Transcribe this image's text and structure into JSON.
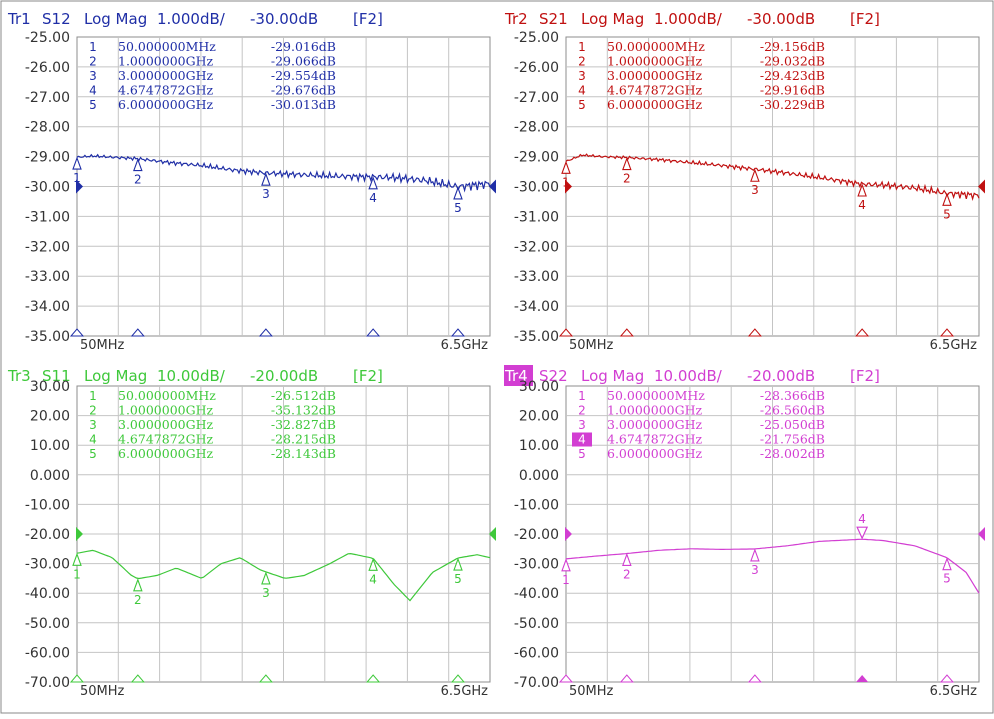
{
  "traces": [
    {
      "id": "tr1",
      "header": {
        "tr": "Tr1",
        "param": "S12",
        "format": "Log Mag",
        "scale": "1.000dB/",
        "ref": "-30.00dB",
        "channel": "[F2]"
      },
      "color": "#1f2ea6",
      "tr_highlight": false,
      "y_labels": [
        "-25.00",
        "-26.00",
        "-27.00",
        "-28.00",
        "-29.00",
        "-30.00",
        "-31.00",
        "-32.00",
        "-33.00",
        "-34.00",
        "-35.00"
      ],
      "x_start": "50MHz",
      "x_stop": "6.5GHz",
      "markers": [
        {
          "num": "1",
          "freq": "50.000000MHz",
          "value": "-29.016dB",
          "active": false
        },
        {
          "num": "2",
          "freq": "1.0000000GHz",
          "value": "-29.066dB",
          "active": false
        },
        {
          "num": "3",
          "freq": "3.0000000GHz",
          "value": "-29.554dB",
          "active": false
        },
        {
          "num": "4",
          "freq": "4.6747872GHz",
          "value": "-29.676dB",
          "active": false
        },
        {
          "num": "5",
          "freq": "6.0000000GHz",
          "value": "-30.013dB",
          "active": false
        }
      ],
      "chart_data": {
        "type": "line",
        "xlim": [
          0.05,
          6.5
        ],
        "ylim": [
          -35,
          -25
        ],
        "ref": -30,
        "x": [
          0.05,
          0.3,
          0.6,
          1.0,
          1.5,
          2.0,
          2.5,
          3.0,
          3.5,
          4.0,
          4.675,
          5.0,
          5.5,
          6.0,
          6.5
        ],
        "y": [
          -29.02,
          -28.98,
          -29.02,
          -29.07,
          -29.2,
          -29.3,
          -29.45,
          -29.55,
          -29.6,
          -29.65,
          -29.68,
          -29.7,
          -29.8,
          -30.01,
          -29.9
        ],
        "ripple": 0.15
      }
    },
    {
      "id": "tr2",
      "header": {
        "tr": "Tr2",
        "param": "S21",
        "format": "Log Mag",
        "scale": "1.000dB/",
        "ref": "-30.00dB",
        "channel": "[F2]"
      },
      "color": "#c01010",
      "tr_highlight": false,
      "y_labels": [
        "-25.00",
        "-26.00",
        "-27.00",
        "-28.00",
        "-29.00",
        "-30.00",
        "-31.00",
        "-32.00",
        "-33.00",
        "-34.00",
        "-35.00"
      ],
      "x_start": "50MHz",
      "x_stop": "6.5GHz",
      "markers": [
        {
          "num": "1",
          "freq": "50.000000MHz",
          "value": "-29.156dB",
          "active": false
        },
        {
          "num": "2",
          "freq": "1.0000000GHz",
          "value": "-29.032dB",
          "active": false
        },
        {
          "num": "3",
          "freq": "3.0000000GHz",
          "value": "-29.423dB",
          "active": false
        },
        {
          "num": "4",
          "freq": "4.6747872GHz",
          "value": "-29.916dB",
          "active": false
        },
        {
          "num": "5",
          "freq": "6.0000000GHz",
          "value": "-30.229dB",
          "active": false
        }
      ],
      "chart_data": {
        "type": "line",
        "xlim": [
          0.05,
          6.5
        ],
        "ylim": [
          -35,
          -25
        ],
        "ref": -30,
        "x": [
          0.05,
          0.3,
          0.6,
          1.0,
          1.5,
          2.0,
          2.5,
          3.0,
          3.5,
          4.0,
          4.675,
          5.0,
          5.5,
          6.0,
          6.5
        ],
        "y": [
          -29.16,
          -28.95,
          -29.0,
          -29.03,
          -29.1,
          -29.2,
          -29.3,
          -29.42,
          -29.55,
          -29.7,
          -29.92,
          -29.95,
          -30.05,
          -30.23,
          -30.3
        ],
        "ripple": 0.12
      }
    },
    {
      "id": "tr3",
      "header": {
        "tr": "Tr3",
        "param": "S11",
        "format": "Log Mag",
        "scale": "10.00dB/",
        "ref": "-20.00dB",
        "channel": "[F2]"
      },
      "color": "#3ec83a",
      "tr_highlight": false,
      "y_labels": [
        "30.00",
        "20.00",
        "10.00",
        "0.000",
        "-10.00",
        "-20.00",
        "-30.00",
        "-40.00",
        "-50.00",
        "-60.00",
        "-70.00"
      ],
      "x_start": "50MHz",
      "x_stop": "6.5GHz",
      "markers": [
        {
          "num": "1",
          "freq": "50.000000MHz",
          "value": "-26.512dB",
          "active": false
        },
        {
          "num": "2",
          "freq": "1.0000000GHz",
          "value": "-35.132dB",
          "active": false
        },
        {
          "num": "3",
          "freq": "3.0000000GHz",
          "value": "-32.827dB",
          "active": false
        },
        {
          "num": "4",
          "freq": "4.6747872GHz",
          "value": "-28.215dB",
          "active": false
        },
        {
          "num": "5",
          "freq": "6.0000000GHz",
          "value": "-28.143dB",
          "active": false
        }
      ],
      "chart_data": {
        "type": "line",
        "xlim": [
          0.05,
          6.5
        ],
        "ylim": [
          -70,
          30
        ],
        "ref": -20,
        "x": [
          0.05,
          0.3,
          0.6,
          0.9,
          1.0,
          1.3,
          1.6,
          2.0,
          2.3,
          2.6,
          2.9,
          3.0,
          3.3,
          3.6,
          4.0,
          4.3,
          4.675,
          5.0,
          5.25,
          5.6,
          6.0,
          6.3,
          6.5
        ],
        "y": [
          -26.5,
          -25.5,
          -28,
          -34,
          -35.1,
          -34,
          -31.5,
          -35,
          -30,
          -28,
          -32,
          -32.8,
          -35,
          -34,
          -30,
          -26.5,
          -28.2,
          -37,
          -42.5,
          -33,
          -28.1,
          -27,
          -28
        ],
        "ripple": 0
      }
    },
    {
      "id": "tr4",
      "header": {
        "tr": "Tr4",
        "param": "S22",
        "format": "Log Mag",
        "scale": "10.00dB/",
        "ref": "-20.00dB",
        "channel": "[F2]"
      },
      "color": "#d23ed2",
      "tr_highlight": true,
      "y_labels": [
        "30.00",
        "20.00",
        "10.00",
        "0.000",
        "-10.00",
        "-20.00",
        "-30.00",
        "-40.00",
        "-50.00",
        "-60.00",
        "-70.00"
      ],
      "x_start": "50MHz",
      "x_stop": "6.5GHz",
      "markers": [
        {
          "num": "1",
          "freq": "50.000000MHz",
          "value": "-28.366dB",
          "active": false
        },
        {
          "num": "2",
          "freq": "1.0000000GHz",
          "value": "-26.560dB",
          "active": false
        },
        {
          "num": "3",
          "freq": "3.0000000GHz",
          "value": "-25.050dB",
          "active": false
        },
        {
          "num": "4",
          "freq": "4.6747872GHz",
          "value": "-21.756dB",
          "active": true
        },
        {
          "num": "5",
          "freq": "6.0000000GHz",
          "value": "-28.002dB",
          "active": false
        }
      ],
      "chart_data": {
        "type": "line",
        "xlim": [
          0.05,
          6.5
        ],
        "ylim": [
          -70,
          30
        ],
        "ref": -20,
        "x": [
          0.05,
          0.5,
          1.0,
          1.5,
          2.0,
          2.5,
          3.0,
          3.5,
          4.0,
          4.675,
          5.0,
          5.5,
          6.0,
          6.3,
          6.5
        ],
        "y": [
          -28.4,
          -27.5,
          -26.6,
          -25.5,
          -25,
          -25.2,
          -25.05,
          -24,
          -22.5,
          -21.76,
          -22.2,
          -24,
          -28,
          -33,
          -40
        ],
        "ripple": 0
      }
    }
  ]
}
